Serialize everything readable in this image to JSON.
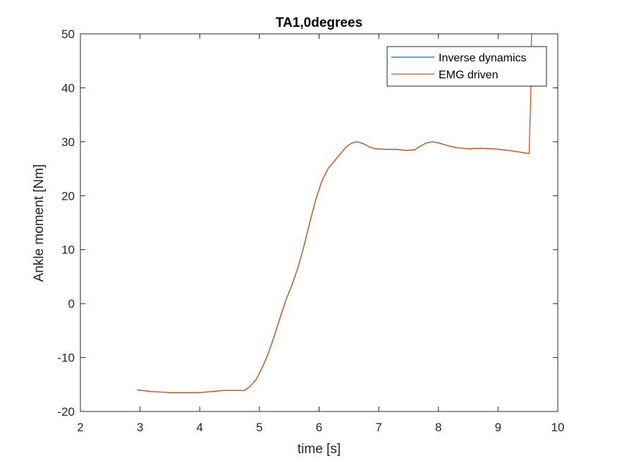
{
  "chart_data": {
    "type": "line",
    "title": "TA1,0degrees",
    "xlabel": "time  [s]",
    "ylabel": "Ankle moment [Nm]",
    "xlim": [
      2,
      10
    ],
    "ylim": [
      -20,
      50
    ],
    "xticks": [
      2,
      3,
      4,
      5,
      6,
      7,
      8,
      9,
      10
    ],
    "yticks": [
      -20,
      -10,
      0,
      10,
      20,
      30,
      40,
      50
    ],
    "grid": false,
    "legend_position": "top-right",
    "series": [
      {
        "name": "Inverse dynamics",
        "color": "#0072BD",
        "x": [
          2.95,
          3.2,
          3.5,
          3.8,
          4.0,
          4.2,
          4.4,
          4.6,
          4.75,
          4.85,
          4.95,
          5.05,
          5.15,
          5.25,
          5.35,
          5.45,
          5.55,
          5.65,
          5.75,
          5.85,
          5.95,
          6.05,
          6.15,
          6.3,
          6.45,
          6.55,
          6.65,
          6.75,
          6.85,
          6.95,
          7.1,
          7.3,
          7.45,
          7.6,
          7.7,
          7.8,
          7.9,
          8.0,
          8.15,
          8.3,
          8.5,
          8.7,
          8.9,
          9.1,
          9.3,
          9.53
        ],
        "y": [
          -16.0,
          -16.3,
          -16.5,
          -16.5,
          -16.5,
          -16.3,
          -16.1,
          -16.1,
          -16.1,
          -15.3,
          -14.0,
          -11.8,
          -9.2,
          -6.0,
          -2.5,
          0.8,
          3.6,
          6.8,
          10.8,
          15.3,
          19.5,
          22.8,
          25.0,
          27.0,
          29.0,
          29.8,
          30.0,
          29.6,
          29.0,
          28.7,
          28.6,
          28.6,
          28.4,
          28.5,
          29.2,
          29.8,
          30.0,
          29.8,
          29.3,
          28.9,
          28.7,
          28.8,
          28.7,
          28.5,
          28.2,
          27.8
        ]
      },
      {
        "name": "EMG driven",
        "color": "#D95319",
        "x": [
          2.95,
          3.2,
          3.5,
          3.8,
          4.0,
          4.2,
          4.4,
          4.6,
          4.75,
          4.85,
          4.95,
          5.05,
          5.15,
          5.25,
          5.35,
          5.45,
          5.55,
          5.65,
          5.75,
          5.85,
          5.95,
          6.05,
          6.15,
          6.3,
          6.45,
          6.55,
          6.65,
          6.75,
          6.85,
          6.95,
          7.1,
          7.3,
          7.45,
          7.6,
          7.7,
          7.8,
          7.9,
          8.0,
          8.15,
          8.3,
          8.5,
          8.7,
          8.9,
          9.1,
          9.3,
          9.52,
          9.55,
          9.56
        ],
        "y": [
          -16.0,
          -16.3,
          -16.5,
          -16.5,
          -16.5,
          -16.3,
          -16.1,
          -16.1,
          -16.1,
          -15.3,
          -14.0,
          -11.8,
          -9.2,
          -6.0,
          -2.5,
          0.8,
          3.6,
          6.8,
          10.8,
          15.3,
          19.5,
          22.8,
          25.0,
          27.0,
          29.0,
          29.8,
          30.0,
          29.6,
          29.0,
          28.7,
          28.6,
          28.6,
          28.4,
          28.5,
          29.2,
          29.8,
          30.0,
          29.8,
          29.3,
          28.9,
          28.7,
          28.8,
          28.7,
          28.5,
          28.2,
          27.8,
          40.0,
          50.0
        ]
      }
    ]
  }
}
